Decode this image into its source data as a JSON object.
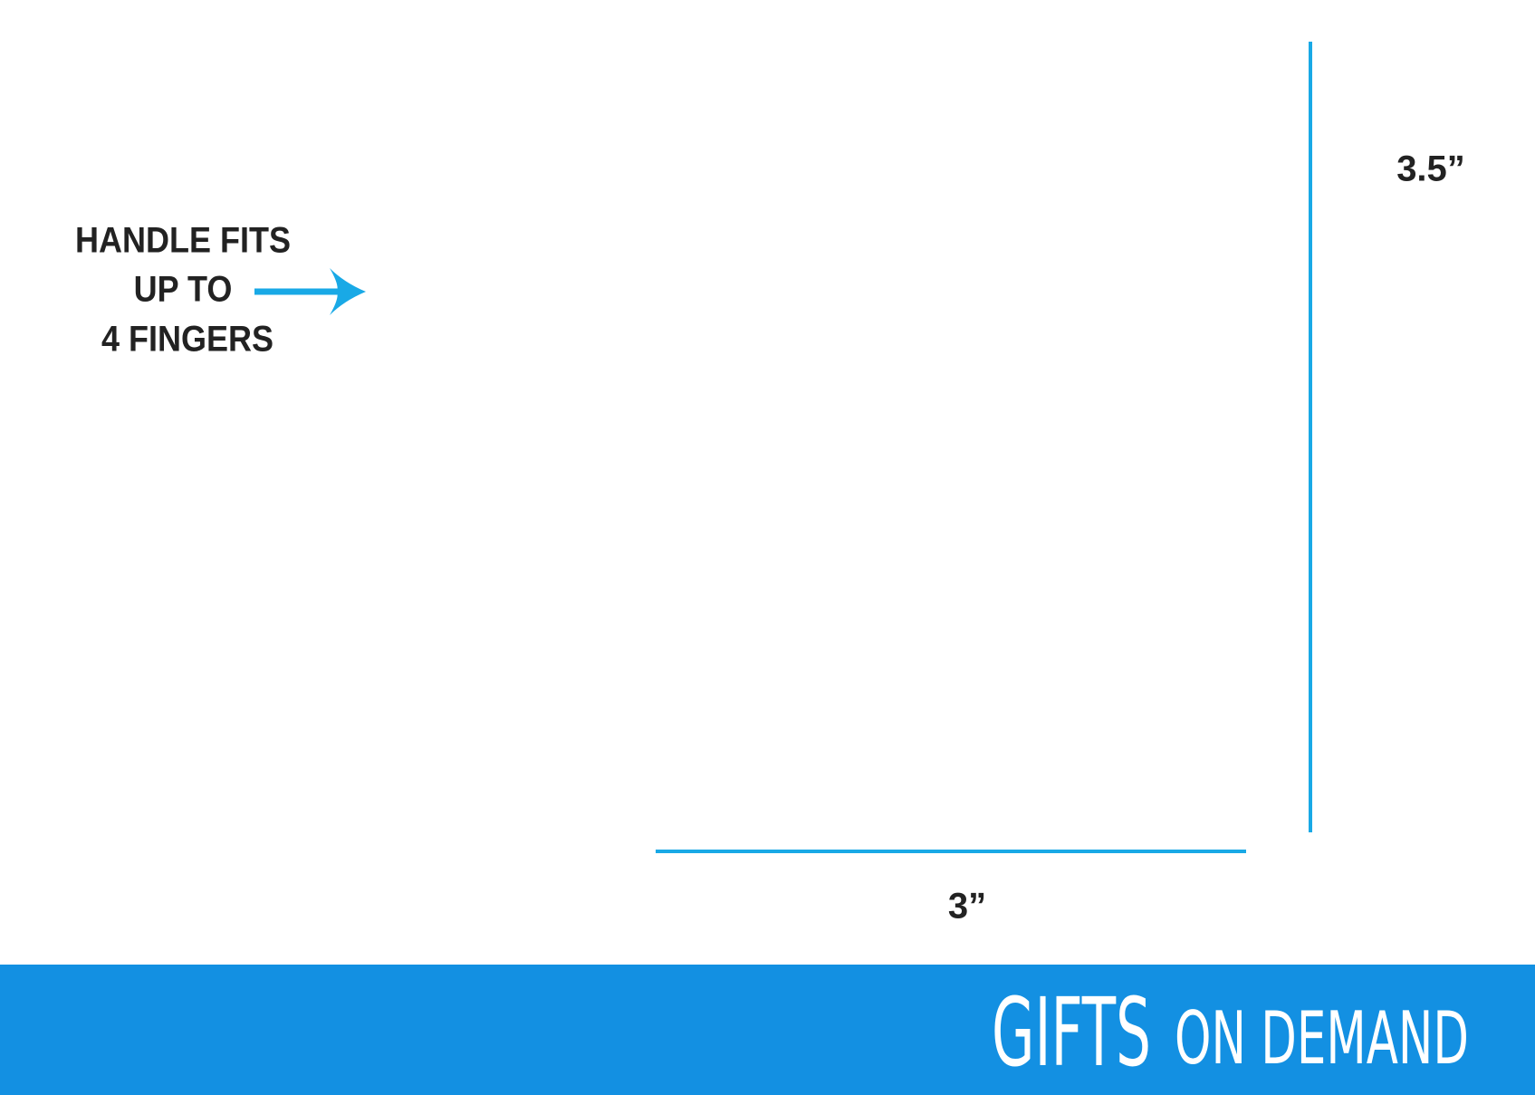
{
  "handle_note": {
    "lines": [
      "HANDLE FITS",
      "UP TO",
      "4 FINGERS"
    ]
  },
  "dimensions": {
    "height": "3.5”",
    "width": "3”"
  },
  "footer": {
    "brand": "GIFTS",
    "tagline": "ON DEMAND"
  }
}
